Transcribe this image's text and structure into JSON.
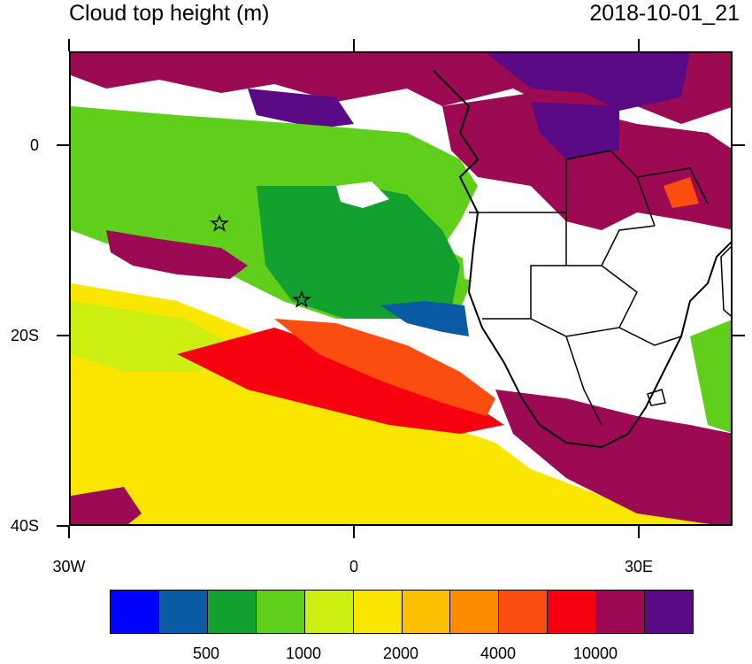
{
  "title": "Cloud top height (m)",
  "timestamp": "2018-10-01_21",
  "axes": {
    "x_ticks": [
      "30W",
      "0",
      "30E"
    ],
    "y_ticks": [
      "0",
      "20S",
      "40S"
    ]
  },
  "colorbar": {
    "colors": [
      "#0000ff",
      "#0b5aa6",
      "#12a12f",
      "#5fcf1c",
      "#ccee11",
      "#fae600",
      "#fbc000",
      "#fd8c00",
      "#fb4d10",
      "#f70010",
      "#9b0a52",
      "#5b0a86"
    ],
    "labels": [
      "500",
      "1000",
      "2000",
      "4000",
      "10000"
    ]
  },
  "markers": [
    {
      "name": "star-marker-1",
      "symbol": "star"
    },
    {
      "name": "star-marker-2",
      "symbol": "star"
    }
  ]
}
